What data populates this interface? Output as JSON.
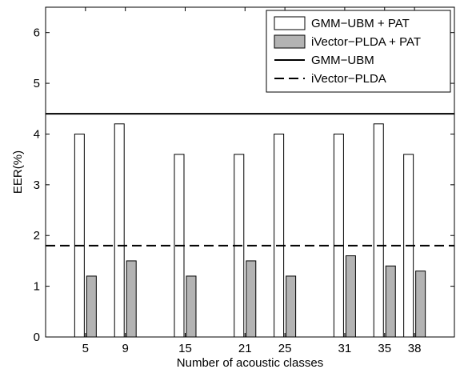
{
  "chart_data": {
    "type": "bar",
    "title": "",
    "xlabel": "Number of acoustic classes",
    "ylabel": "EER(%)",
    "ylim": [
      0,
      6.5
    ],
    "yticks": [
      "0",
      "1",
      "2",
      "3",
      "4",
      "5",
      "6"
    ],
    "categories": [
      "5",
      "9",
      "15",
      "21",
      "25",
      "31",
      "35",
      "38"
    ],
    "series": [
      {
        "name": "GMM−UBM + PAT",
        "values": [
          4.0,
          4.2,
          3.6,
          3.6,
          4.0,
          4.0,
          4.2,
          3.6
        ],
        "color": "#ffffff"
      },
      {
        "name": "iVector−PLDA + PAT",
        "values": [
          1.2,
          1.5,
          1.2,
          1.5,
          1.2,
          1.6,
          1.4,
          1.3
        ],
        "color": "#b3b3b3"
      }
    ],
    "reference_lines": [
      {
        "name": "GMM−UBM",
        "value": 4.4,
        "style": "solid"
      },
      {
        "name": "iVector−PLDA",
        "value": 1.8,
        "style": "dashed"
      }
    ],
    "legend_position": "top-right",
    "grid": false
  }
}
